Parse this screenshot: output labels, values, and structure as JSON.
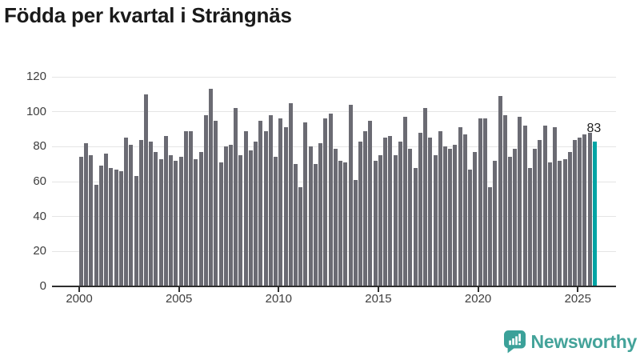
{
  "title": "Födda per kvartal i Strängnäs",
  "footer": {
    "brand": "Newsworthy"
  },
  "colors": {
    "bar": "#6b6b73",
    "highlight": "#00a4a4",
    "grid": "#e4e4e4",
    "axis": "#2e2e2e",
    "tick_label": "#3e3e3e",
    "title": "#1a1a1a",
    "value_label": "#1f1f1f",
    "brand_teal": "#44a39a"
  },
  "chart_data": {
    "type": "bar",
    "title": "Födda per kvartal i Strängnäs",
    "x_start": "2000 Q1",
    "x_end": "2025 Q4",
    "x_tick_labels": [
      "2000",
      "2005",
      "2010",
      "2015",
      "2020",
      "2025"
    ],
    "y_ticks": [
      0,
      20,
      40,
      60,
      80,
      100,
      120
    ],
    "ylim": [
      0,
      120
    ],
    "grid": true,
    "values": [
      74,
      82,
      75,
      58,
      69,
      76,
      68,
      67,
      66,
      85,
      81,
      63,
      84,
      110,
      83,
      77,
      73,
      86,
      75,
      72,
      74,
      89,
      89,
      73,
      77,
      98,
      113,
      95,
      71,
      80,
      81,
      102,
      75,
      89,
      78,
      83,
      95,
      89,
      98,
      74,
      96,
      91,
      105,
      70,
      57,
      94,
      80,
      70,
      82,
      96,
      99,
      79,
      72,
      71,
      104,
      61,
      83,
      89,
      95,
      72,
      75,
      85,
      86,
      75,
      83,
      97,
      79,
      68,
      88,
      102,
      85,
      75,
      89,
      80,
      79,
      81,
      91,
      87,
      67,
      77,
      96,
      96,
      57,
      72,
      109,
      98,
      74,
      79,
      97,
      92,
      68,
      79,
      84,
      92,
      71,
      91,
      72,
      73,
      77,
      84,
      85,
      87,
      88,
      83
    ],
    "highlight": {
      "index": 103,
      "value": 83,
      "label": "83"
    }
  }
}
